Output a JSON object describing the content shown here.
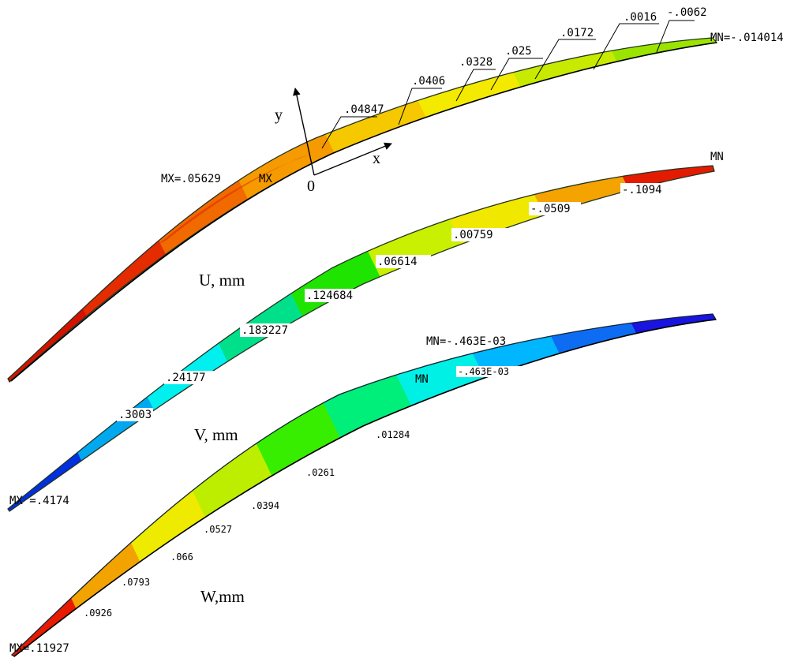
{
  "plots": {
    "u": {
      "title": "U, mm",
      "mx": "MX=.05629",
      "mx_tag": "MX",
      "mn": "MN=-.014014",
      "contour_labels": [
        ".04847",
        ".0406",
        ".0328",
        ".025",
        ".0172",
        ".0016",
        "-.0062"
      ],
      "colors": [
        "#9be400",
        "#c7ea00",
        "#f3ea00",
        "#f5c800",
        "#f59a00",
        "#f06a00",
        "#e52b00",
        "#d51200"
      ]
    },
    "v": {
      "title": "V, mm",
      "mx": "MX =.4174",
      "mn": "MN",
      "contour_labels": [
        ".3003",
        ".24177",
        ".183227",
        ".124684",
        ".06614",
        ".00759",
        "-.0509",
        "-.1094"
      ],
      "colors": [
        "#e31b00",
        "#f4a300",
        "#f1e800",
        "#c9f000",
        "#1fe400",
        "#00e08a",
        "#00f0f0",
        "#00a8f0",
        "#0030e0"
      ]
    },
    "w": {
      "title": "W,mm",
      "mx": "MX=.11927",
      "mn": "MN=-.463E-03",
      "mn_tag": "MN",
      "contour_labels": [
        "-.463E-03",
        ".01284",
        ".0261",
        ".0394",
        ".0527",
        ".066",
        ".0793",
        ".0926"
      ],
      "colors": [
        "#1a14e0",
        "#0e6cf2",
        "#00b6ff",
        "#00f0e6",
        "#00ee7a",
        "#37ee00",
        "#bdee00",
        "#eeea00",
        "#f2a300",
        "#e81a00"
      ]
    }
  },
  "axes": {
    "x": "x",
    "y": "y",
    "origin": "0"
  }
}
